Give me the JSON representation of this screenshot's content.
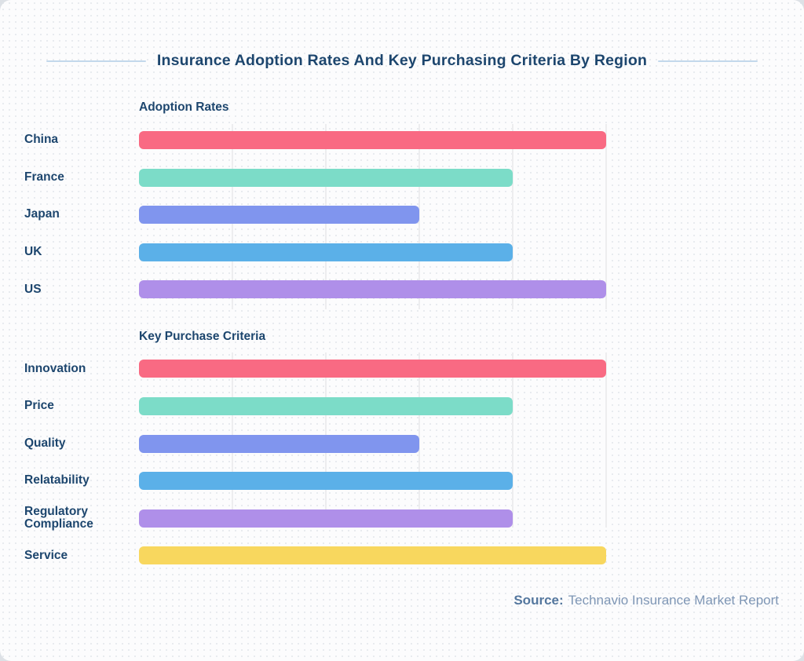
{
  "title": "Insurance Adoption Rates And Key Purchasing Criteria By Region",
  "source": {
    "label": "Source:",
    "text": "Technavio Insurance Market Report"
  },
  "colors": {
    "heading_navy": "#1d466e",
    "decorative_rule": "#c3d8ec",
    "gridline": "#ededef",
    "source_label": "#54779e",
    "source_text": "#7e96b5",
    "card_background": "#fcfcfd"
  },
  "chart_data": [
    {
      "type": "bar",
      "orientation": "horizontal",
      "title": "Adoption Rates",
      "categories": [
        "China",
        "France",
        "Japan",
        "UK",
        "US"
      ],
      "values": [
        100,
        80,
        60,
        80,
        100
      ],
      "bar_colors": [
        "#f96a83",
        "#7cdcc8",
        "#8095ee",
        "#5bb0e8",
        "#af8fe9"
      ],
      "xlim": [
        0,
        100
      ],
      "grid": true,
      "axis_tick_labels_visible": false
    },
    {
      "type": "bar",
      "orientation": "horizontal",
      "title": "Key Purchase Criteria",
      "categories": [
        "Innovation",
        "Price",
        "Quality",
        "Relatability",
        "Regulatory Compliance",
        "Service"
      ],
      "values": [
        100,
        80,
        60,
        80,
        80,
        100
      ],
      "bar_colors": [
        "#f96a83",
        "#7cdcc8",
        "#8095ee",
        "#5bb0e8",
        "#af8fe9",
        "#f8d75e"
      ],
      "xlim": [
        0,
        100
      ],
      "grid": true,
      "axis_tick_labels_visible": false
    }
  ]
}
